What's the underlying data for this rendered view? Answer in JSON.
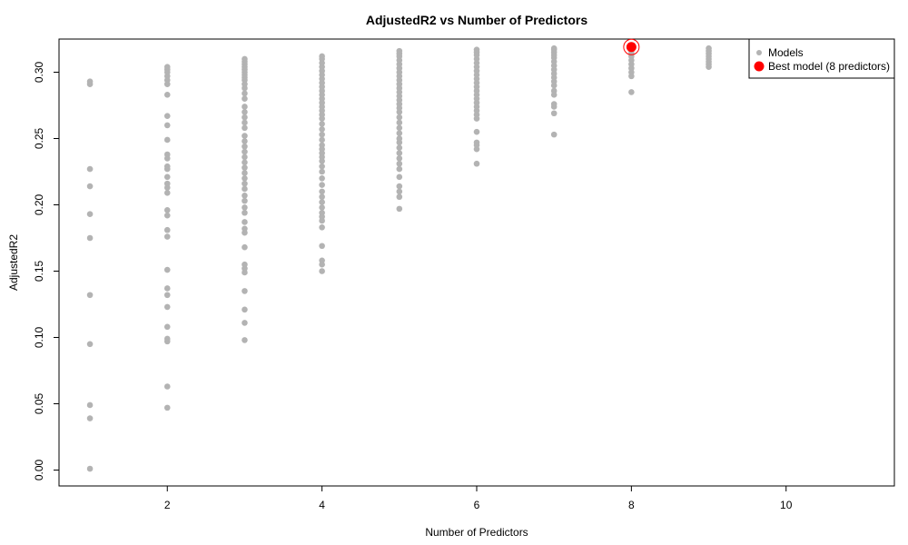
{
  "chart_data": {
    "type": "scatter",
    "title": "AdjustedR2 vs Number of Predictors",
    "xlabel": "Number of Predictors",
    "ylabel": "AdjustedR2",
    "xlim": [
      0.6,
      11.4
    ],
    "ylim": [
      -0.012,
      0.325
    ],
    "x_ticks": [
      2,
      4,
      6,
      8,
      10
    ],
    "y_ticks": [
      0.0,
      0.05,
      0.1,
      0.15,
      0.2,
      0.25,
      0.3
    ],
    "y_tick_labels": [
      "0.00",
      "0.05",
      "0.10",
      "0.15",
      "0.20",
      "0.25",
      "0.30"
    ],
    "grid": false,
    "legend_position": "top-right",
    "series": [
      {
        "name": "Models",
        "color": "#b3b3b3",
        "points": [
          [
            1,
            0.001
          ],
          [
            1,
            0.039
          ],
          [
            1,
            0.049
          ],
          [
            1,
            0.095
          ],
          [
            1,
            0.132
          ],
          [
            1,
            0.175
          ],
          [
            1,
            0.193
          ],
          [
            1,
            0.214
          ],
          [
            1,
            0.227
          ],
          [
            1,
            0.291
          ],
          [
            1,
            0.293
          ],
          [
            2,
            0.047
          ],
          [
            2,
            0.063
          ],
          [
            2,
            0.097
          ],
          [
            2,
            0.099
          ],
          [
            2,
            0.108
          ],
          [
            2,
            0.123
          ],
          [
            2,
            0.132
          ],
          [
            2,
            0.137
          ],
          [
            2,
            0.151
          ],
          [
            2,
            0.176
          ],
          [
            2,
            0.181
          ],
          [
            2,
            0.192
          ],
          [
            2,
            0.196
          ],
          [
            2,
            0.209
          ],
          [
            2,
            0.213
          ],
          [
            2,
            0.216
          ],
          [
            2,
            0.221
          ],
          [
            2,
            0.227
          ],
          [
            2,
            0.229
          ],
          [
            2,
            0.235
          ],
          [
            2,
            0.238
          ],
          [
            2,
            0.249
          ],
          [
            2,
            0.26
          ],
          [
            2,
            0.267
          ],
          [
            2,
            0.283
          ],
          [
            2,
            0.291
          ],
          [
            2,
            0.294
          ],
          [
            2,
            0.297
          ],
          [
            2,
            0.3
          ],
          [
            2,
            0.302
          ],
          [
            2,
            0.304
          ],
          [
            3,
            0.098
          ],
          [
            3,
            0.111
          ],
          [
            3,
            0.121
          ],
          [
            3,
            0.135
          ],
          [
            3,
            0.149
          ],
          [
            3,
            0.152
          ],
          [
            3,
            0.155
          ],
          [
            3,
            0.168
          ],
          [
            3,
            0.179
          ],
          [
            3,
            0.182
          ],
          [
            3,
            0.187
          ],
          [
            3,
            0.194
          ],
          [
            3,
            0.198
          ],
          [
            3,
            0.203
          ],
          [
            3,
            0.207
          ],
          [
            3,
            0.212
          ],
          [
            3,
            0.216
          ],
          [
            3,
            0.22
          ],
          [
            3,
            0.224
          ],
          [
            3,
            0.228
          ],
          [
            3,
            0.232
          ],
          [
            3,
            0.236
          ],
          [
            3,
            0.24
          ],
          [
            3,
            0.244
          ],
          [
            3,
            0.248
          ],
          [
            3,
            0.252
          ],
          [
            3,
            0.258
          ],
          [
            3,
            0.262
          ],
          [
            3,
            0.266
          ],
          [
            3,
            0.27
          ],
          [
            3,
            0.274
          ],
          [
            3,
            0.28
          ],
          [
            3,
            0.284
          ],
          [
            3,
            0.288
          ],
          [
            3,
            0.291
          ],
          [
            3,
            0.294
          ],
          [
            3,
            0.296
          ],
          [
            3,
            0.298
          ],
          [
            3,
            0.3
          ],
          [
            3,
            0.302
          ],
          [
            3,
            0.304
          ],
          [
            3,
            0.306
          ],
          [
            3,
            0.308
          ],
          [
            3,
            0.31
          ],
          [
            4,
            0.15
          ],
          [
            4,
            0.155
          ],
          [
            4,
            0.158
          ],
          [
            4,
            0.169
          ],
          [
            4,
            0.183
          ],
          [
            4,
            0.188
          ],
          [
            4,
            0.191
          ],
          [
            4,
            0.194
          ],
          [
            4,
            0.198
          ],
          [
            4,
            0.202
          ],
          [
            4,
            0.206
          ],
          [
            4,
            0.21
          ],
          [
            4,
            0.215
          ],
          [
            4,
            0.22
          ],
          [
            4,
            0.225
          ],
          [
            4,
            0.229
          ],
          [
            4,
            0.233
          ],
          [
            4,
            0.236
          ],
          [
            4,
            0.239
          ],
          [
            4,
            0.242
          ],
          [
            4,
            0.245
          ],
          [
            4,
            0.249
          ],
          [
            4,
            0.253
          ],
          [
            4,
            0.257
          ],
          [
            4,
            0.261
          ],
          [
            4,
            0.265
          ],
          [
            4,
            0.268
          ],
          [
            4,
            0.271
          ],
          [
            4,
            0.274
          ],
          [
            4,
            0.277
          ],
          [
            4,
            0.28
          ],
          [
            4,
            0.283
          ],
          [
            4,
            0.286
          ],
          [
            4,
            0.289
          ],
          [
            4,
            0.292
          ],
          [
            4,
            0.295
          ],
          [
            4,
            0.298
          ],
          [
            4,
            0.301
          ],
          [
            4,
            0.304
          ],
          [
            4,
            0.307
          ],
          [
            4,
            0.31
          ],
          [
            4,
            0.312
          ],
          [
            5,
            0.197
          ],
          [
            5,
            0.206
          ],
          [
            5,
            0.21
          ],
          [
            5,
            0.214
          ],
          [
            5,
            0.221
          ],
          [
            5,
            0.227
          ],
          [
            5,
            0.231
          ],
          [
            5,
            0.235
          ],
          [
            5,
            0.239
          ],
          [
            5,
            0.243
          ],
          [
            5,
            0.247
          ],
          [
            5,
            0.25
          ],
          [
            5,
            0.254
          ],
          [
            5,
            0.258
          ],
          [
            5,
            0.262
          ],
          [
            5,
            0.266
          ],
          [
            5,
            0.27
          ],
          [
            5,
            0.273
          ],
          [
            5,
            0.276
          ],
          [
            5,
            0.279
          ],
          [
            5,
            0.282
          ],
          [
            5,
            0.285
          ],
          [
            5,
            0.288
          ],
          [
            5,
            0.291
          ],
          [
            5,
            0.294
          ],
          [
            5,
            0.297
          ],
          [
            5,
            0.3
          ],
          [
            5,
            0.303
          ],
          [
            5,
            0.306
          ],
          [
            5,
            0.309
          ],
          [
            5,
            0.312
          ],
          [
            5,
            0.314
          ],
          [
            5,
            0.316
          ],
          [
            6,
            0.231
          ],
          [
            6,
            0.242
          ],
          [
            6,
            0.245
          ],
          [
            6,
            0.247
          ],
          [
            6,
            0.255
          ],
          [
            6,
            0.265
          ],
          [
            6,
            0.268
          ],
          [
            6,
            0.271
          ],
          [
            6,
            0.274
          ],
          [
            6,
            0.277
          ],
          [
            6,
            0.28
          ],
          [
            6,
            0.283
          ],
          [
            6,
            0.286
          ],
          [
            6,
            0.289
          ],
          [
            6,
            0.292
          ],
          [
            6,
            0.295
          ],
          [
            6,
            0.298
          ],
          [
            6,
            0.301
          ],
          [
            6,
            0.304
          ],
          [
            6,
            0.307
          ],
          [
            6,
            0.31
          ],
          [
            6,
            0.313
          ],
          [
            6,
            0.315
          ],
          [
            6,
            0.317
          ],
          [
            7,
            0.253
          ],
          [
            7,
            0.269
          ],
          [
            7,
            0.274
          ],
          [
            7,
            0.276
          ],
          [
            7,
            0.283
          ],
          [
            7,
            0.286
          ],
          [
            7,
            0.29
          ],
          [
            7,
            0.293
          ],
          [
            7,
            0.296
          ],
          [
            7,
            0.299
          ],
          [
            7,
            0.302
          ],
          [
            7,
            0.305
          ],
          [
            7,
            0.308
          ],
          [
            7,
            0.311
          ],
          [
            7,
            0.313
          ],
          [
            7,
            0.315
          ],
          [
            7,
            0.317
          ],
          [
            7,
            0.318
          ],
          [
            8,
            0.285
          ],
          [
            8,
            0.297
          ],
          [
            8,
            0.3
          ],
          [
            8,
            0.303
          ],
          [
            8,
            0.306
          ],
          [
            8,
            0.309
          ],
          [
            8,
            0.312
          ],
          [
            8,
            0.314
          ],
          [
            8,
            0.316
          ],
          [
            8,
            0.318
          ],
          [
            9,
            0.304
          ],
          [
            9,
            0.306
          ],
          [
            9,
            0.308
          ],
          [
            9,
            0.31
          ],
          [
            9,
            0.312
          ],
          [
            9,
            0.314
          ],
          [
            9,
            0.316
          ],
          [
            9,
            0.318
          ]
        ]
      },
      {
        "name": "Best model (8 predictors)",
        "color": "#ff0000",
        "points": [
          [
            8,
            0.319
          ]
        ]
      }
    ]
  }
}
